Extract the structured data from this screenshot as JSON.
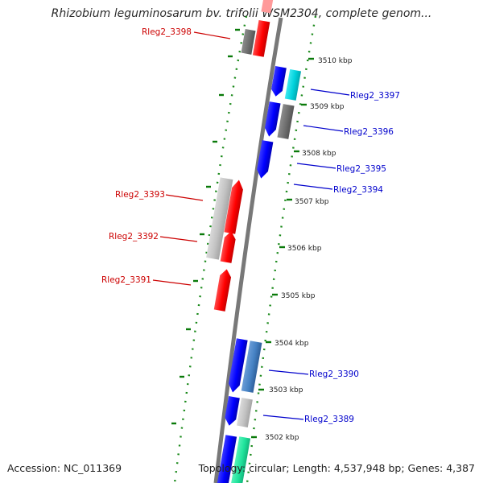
{
  "title": "Rhizobium leguminosarum bv. trifolii WSM2304, complete genom...",
  "footer": {
    "accession": "Accession: NC_011369",
    "summary": "Topology: circular; Length: 4,537,948 bp; Genes: 4,387"
  },
  "colors": {
    "forward": "#ff0000",
    "reverse": "#0000ff",
    "backbone": "#7a7a7a",
    "ticks": "#008000",
    "forward_label": "#cc0000",
    "reverse_label": "#0000cc"
  },
  "scale_ticks": [
    "3510 kbp",
    "3509 kbp",
    "3508 kbp",
    "3507 kbp",
    "3506 kbp",
    "3505 kbp",
    "3504 kbp",
    "3503 kbp",
    "3502 kbp"
  ],
  "gene_labels": {
    "forward": [
      "Rleg2_3398",
      "Rleg2_3393",
      "Rleg2_3392",
      "Rleg2_3391"
    ],
    "reverse": [
      "Rleg2_3397",
      "Rleg2_3396",
      "Rleg2_3395",
      "Rleg2_3394",
      "Rleg2_3390",
      "Rleg2_3389"
    ]
  }
}
